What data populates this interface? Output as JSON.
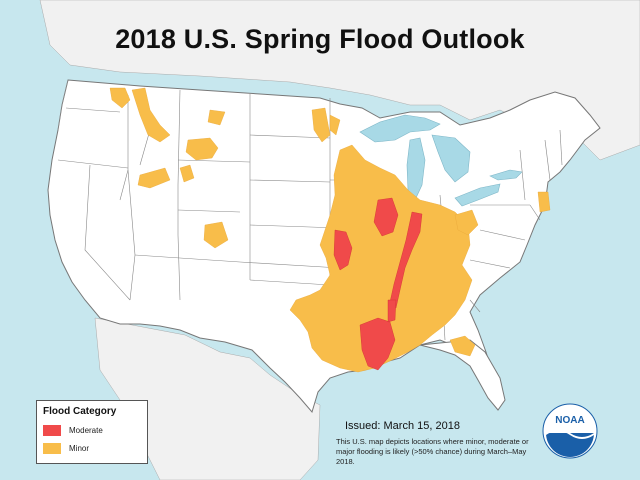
{
  "title": "2018 U.S. Spring Flood Outlook",
  "legend": {
    "title": "Flood Category",
    "items": [
      {
        "label": "Moderate",
        "color": "#f04a4a"
      },
      {
        "label": "Minor",
        "color": "#f8bd4a"
      }
    ]
  },
  "issued": "Issued:  March 15, 2018",
  "note": "This U.S. map depicts locations where minor, moderate or major flooding is likely (>50% chance) during March–May 2018.",
  "logo": {
    "text": "NOAA",
    "icon": "noaa-logo-icon"
  },
  "colors": {
    "ocean": "#c7e7ee",
    "land": "#ffffff",
    "neighbor_land": "#f1f1f1",
    "lakes": "#a8d9e6",
    "borders": "#888888"
  }
}
